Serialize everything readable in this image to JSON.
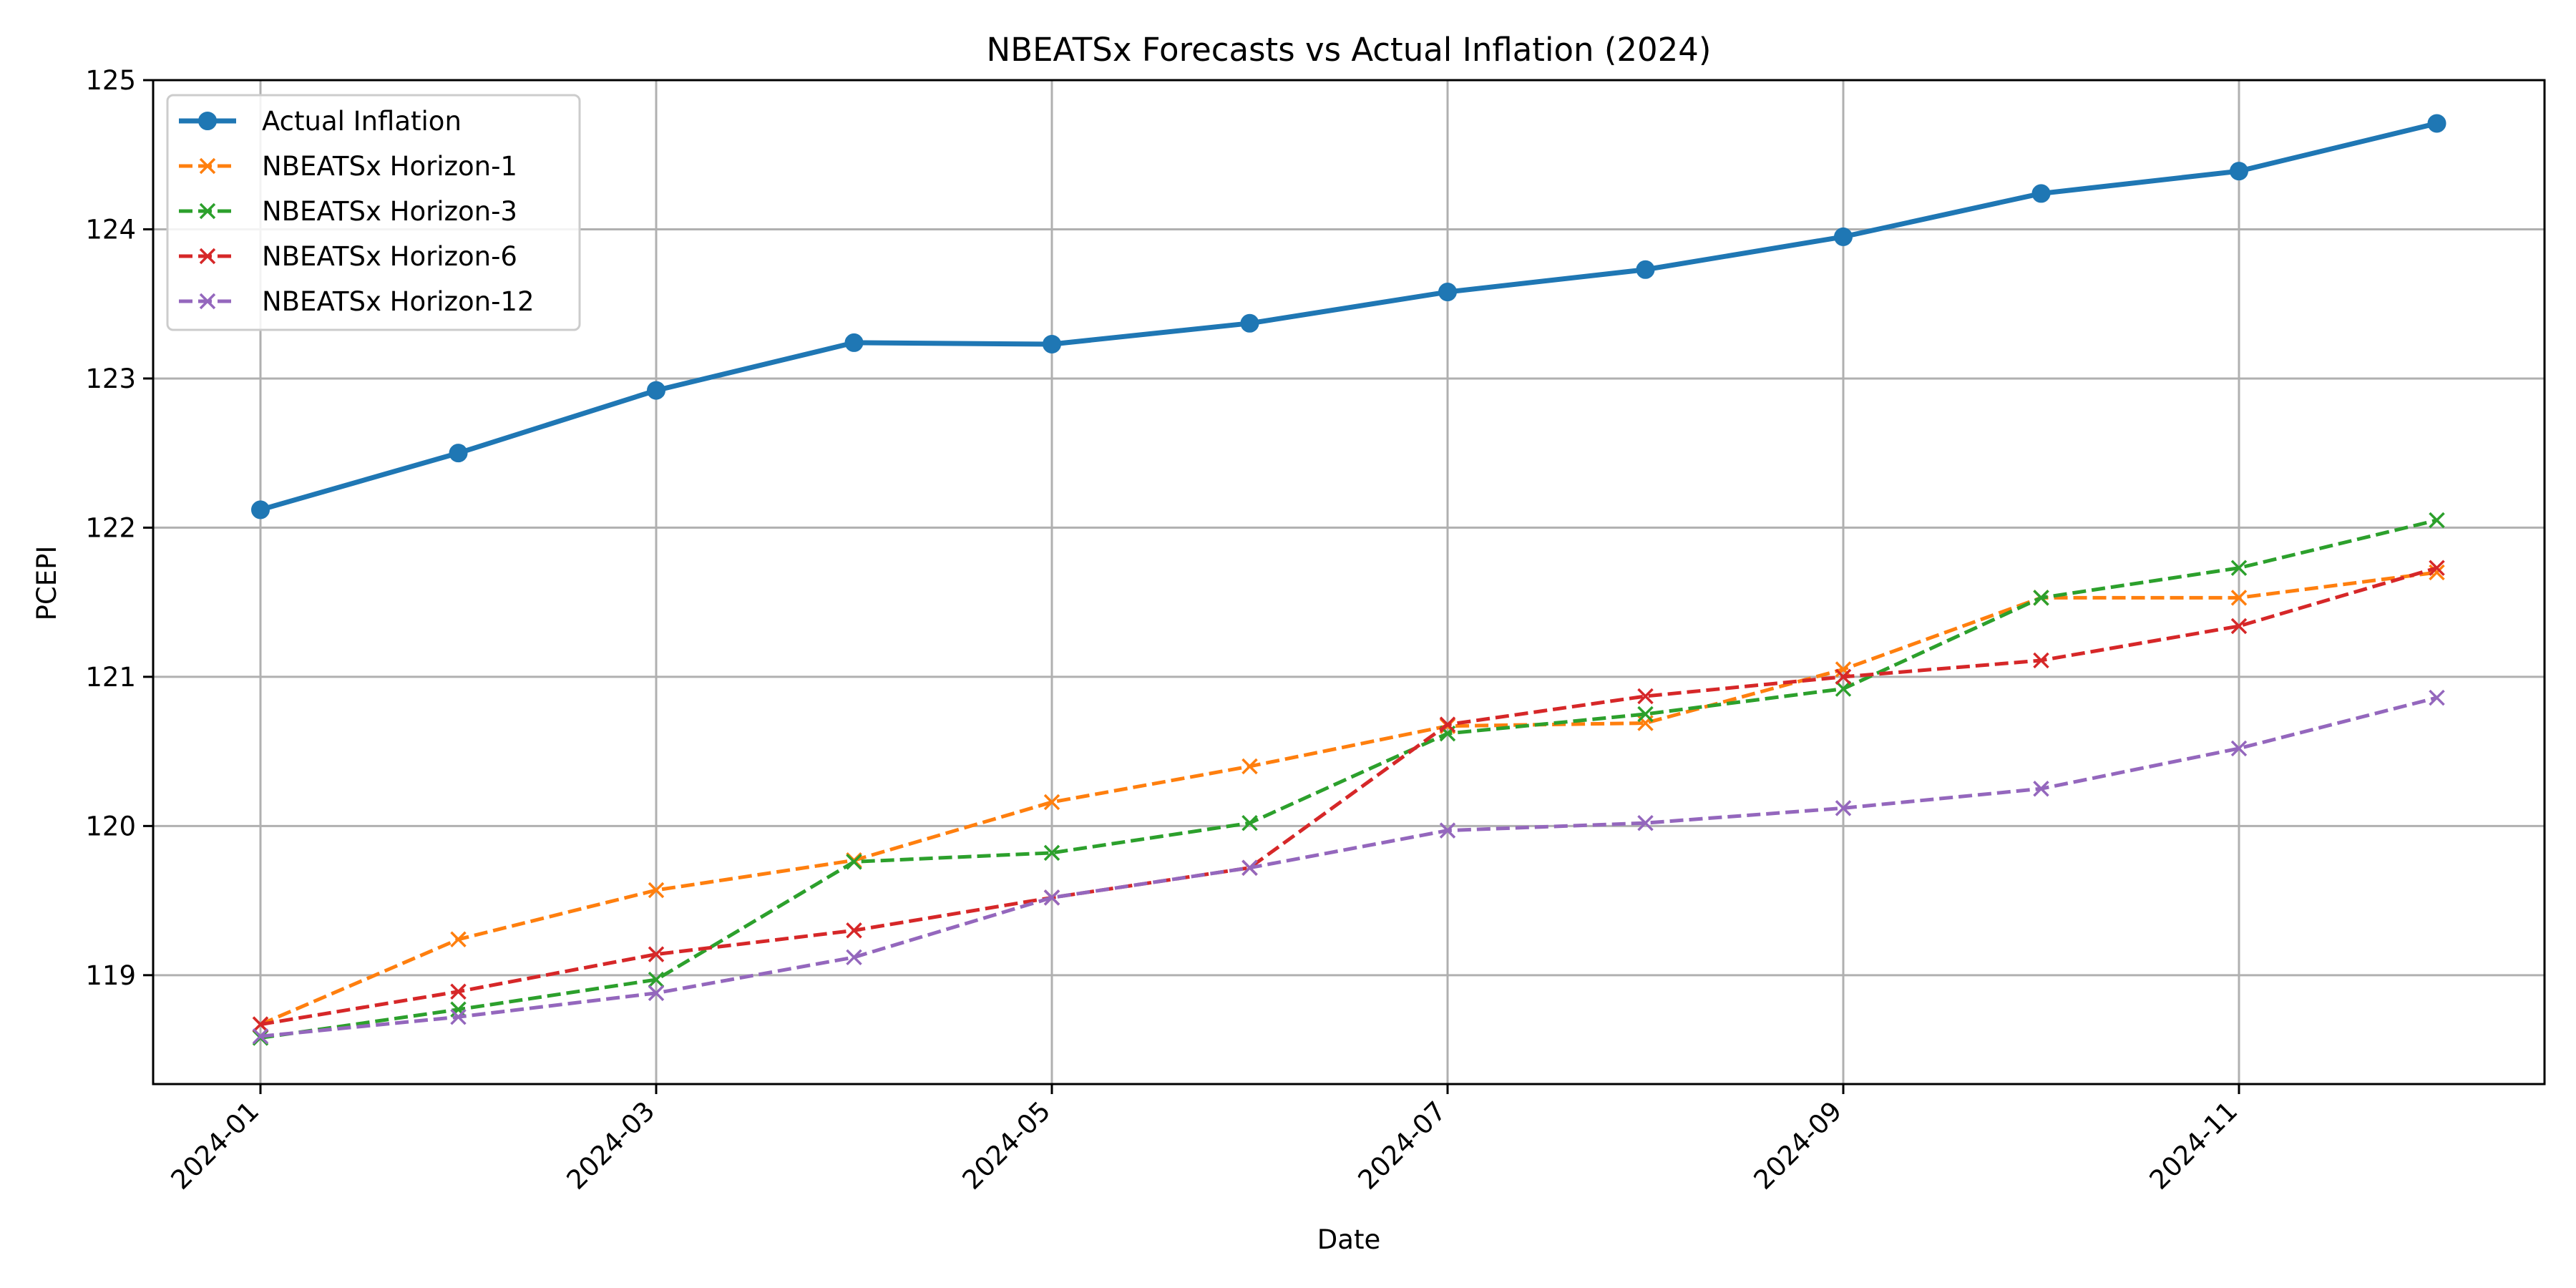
{
  "chart_data": {
    "type": "line",
    "title": "NBEATSx Forecasts vs Actual Inflation (2024)",
    "xlabel": "Date",
    "ylabel": "PCEPI",
    "x": [
      "2024-01",
      "2024-02",
      "2024-03",
      "2024-04",
      "2024-05",
      "2024-06",
      "2024-07",
      "2024-08",
      "2024-09",
      "2024-10",
      "2024-11",
      "2024-12"
    ],
    "x_tick_labels": [
      "2024-01",
      "2024-03",
      "2024-05",
      "2024-07",
      "2024-09",
      "2024-11"
    ],
    "y_ticks": [
      119,
      120,
      121,
      122,
      123,
      124,
      125
    ],
    "ylim": [
      118.27,
      125.0
    ],
    "grid": true,
    "legend_position": "top-left",
    "series": [
      {
        "name": "Actual Inflation",
        "color": "#1f77b4",
        "style": "solid",
        "marker": "circle",
        "values": [
          122.12,
          122.5,
          122.92,
          123.24,
          123.23,
          123.37,
          123.58,
          123.73,
          123.95,
          124.24,
          124.39,
          124.71
        ]
      },
      {
        "name": "NBEATSx Horizon-1",
        "color": "#ff7f0e",
        "style": "dashed",
        "marker": "x",
        "values": [
          118.67,
          119.24,
          119.57,
          119.77,
          120.16,
          120.4,
          120.67,
          120.69,
          121.05,
          121.53,
          121.53,
          121.7
        ]
      },
      {
        "name": "NBEATSx Horizon-3",
        "color": "#2ca02c",
        "style": "dashed",
        "marker": "x",
        "values": [
          118.58,
          118.77,
          118.97,
          119.76,
          119.82,
          120.02,
          120.62,
          120.75,
          120.92,
          121.53,
          121.73,
          122.05
        ]
      },
      {
        "name": "NBEATSx Horizon-6",
        "color": "#d62728",
        "style": "dashed",
        "marker": "x",
        "values": [
          118.67,
          118.89,
          119.14,
          119.3,
          119.52,
          119.72,
          120.68,
          120.87,
          121.0,
          121.11,
          121.34,
          121.73
        ]
      },
      {
        "name": "NBEATSx Horizon-12",
        "color": "#9467bd",
        "style": "dashed",
        "marker": "x",
        "values": [
          118.59,
          118.72,
          118.88,
          119.12,
          119.52,
          119.72,
          119.97,
          120.02,
          120.12,
          120.25,
          120.52,
          120.86
        ]
      }
    ]
  }
}
